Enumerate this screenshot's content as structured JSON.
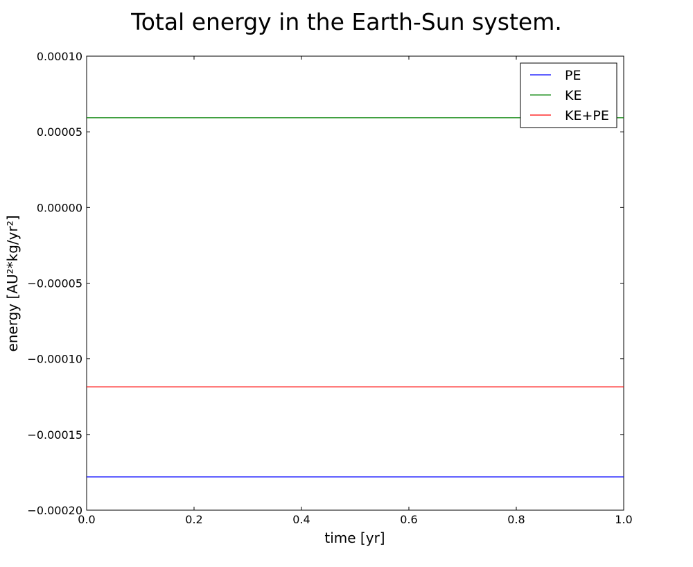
{
  "chart_data": {
    "type": "line",
    "title": "Total energy in the Earth-Sun system.",
    "xlabel": "time [yr]",
    "ylabel": "energy [AU²*kg/yr²]",
    "xlim": [
      0.0,
      1.0
    ],
    "ylim": [
      -0.0002,
      0.0001
    ],
    "x_ticks": [
      "0.0",
      "0.2",
      "0.4",
      "0.6",
      "0.8",
      "1.0"
    ],
    "y_ticks": [
      "0.00010",
      "0.00005",
      "0.00000",
      "−0.00005",
      "−0.00010",
      "−0.00015",
      "−0.00020"
    ],
    "grid": false,
    "legend_position": "top-right",
    "series": [
      {
        "name": "PE",
        "color": "#0000ff",
        "x": [
          0.0,
          1.0
        ],
        "y": [
          -0.000178,
          -0.000178
        ]
      },
      {
        "name": "KE",
        "color": "#008000",
        "x": [
          0.0,
          1.0
        ],
        "y": [
          5.93e-05,
          5.93e-05
        ]
      },
      {
        "name": "KE+PE",
        "color": "#ff0000",
        "x": [
          0.0,
          1.0
        ],
        "y": [
          -0.0001185,
          -0.0001185
        ]
      }
    ]
  }
}
